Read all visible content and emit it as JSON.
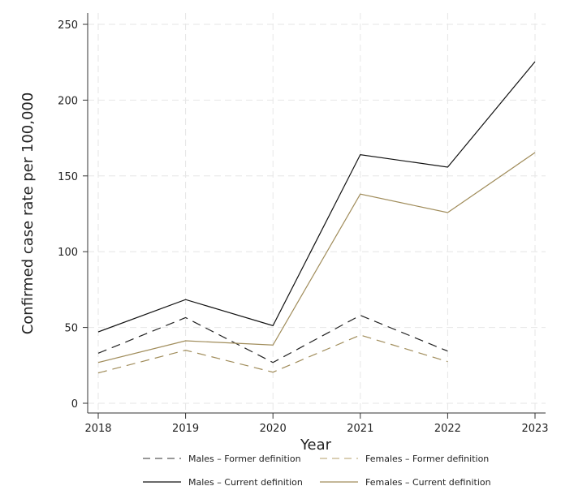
{
  "chart_data": {
    "type": "line",
    "title": "",
    "xlabel": "Year",
    "ylabel": "Confirmed case rate per 100,000",
    "x": [
      2018,
      2019,
      2020,
      2021,
      2022,
      2023
    ],
    "xlim": [
      2018,
      2023
    ],
    "ylim": [
      0,
      250
    ],
    "yticks": [
      0,
      50,
      100,
      150,
      200,
      250
    ],
    "grid": true,
    "legend_placement": "bottom",
    "series": [
      {
        "name": "Males – Former definition",
        "color": "#222222",
        "dash": true,
        "values": [
          33.0,
          56.5,
          26.9,
          58.0,
          34.4,
          null
        ]
      },
      {
        "name": "Females – Former definition",
        "color": "#a08c5a",
        "dash": true,
        "values": [
          20.0,
          35.0,
          20.5,
          45.0,
          27.5,
          null
        ]
      },
      {
        "name": "Males – Current definition",
        "color": "#111111",
        "dash": false,
        "values": [
          47.1,
          68.4,
          51.2,
          164.0,
          155.8,
          225.4
        ]
      },
      {
        "name": "Females – Current definition",
        "color": "#a08c5a",
        "dash": false,
        "values": [
          26.9,
          41.2,
          38.4,
          138.0,
          125.8,
          165.4
        ]
      }
    ]
  }
}
